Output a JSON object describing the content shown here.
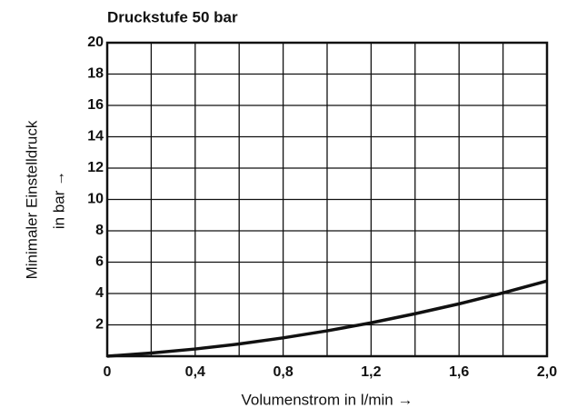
{
  "chart_data": {
    "type": "line",
    "title": "Druckstufe 50 bar",
    "xlabel": "Volumenstrom in l/min →",
    "ylabel": [
      "Minimaler Einstelldruck",
      "in bar →"
    ],
    "x": [
      0,
      0.2,
      0.4,
      0.6,
      0.8,
      1.0,
      1.2,
      1.4,
      1.6,
      1.8,
      2.0
    ],
    "series": [
      {
        "color": "#111111",
        "values": [
          0,
          0.2,
          0.46,
          0.78,
          1.17,
          1.62,
          2.13,
          2.71,
          3.34,
          4.04,
          4.8
        ]
      }
    ],
    "xlim": [
      0,
      2.0
    ],
    "ylim": [
      0,
      20
    ],
    "xticks": [
      0,
      {
        "value": 0.4,
        "label": "0,4"
      },
      {
        "value": 0.8,
        "label": "0,8"
      },
      {
        "value": 1.2,
        "label": "1,2"
      },
      {
        "value": 1.6,
        "label": "1,6"
      },
      {
        "value": 2.0,
        "label": "2,0"
      }
    ],
    "xminor_ticks": [
      0.2,
      0.6,
      1.0,
      1.4,
      1.8
    ],
    "yticks": [
      2,
      4,
      6,
      8,
      10,
      12,
      14,
      16,
      18,
      20
    ],
    "grid": true
  }
}
